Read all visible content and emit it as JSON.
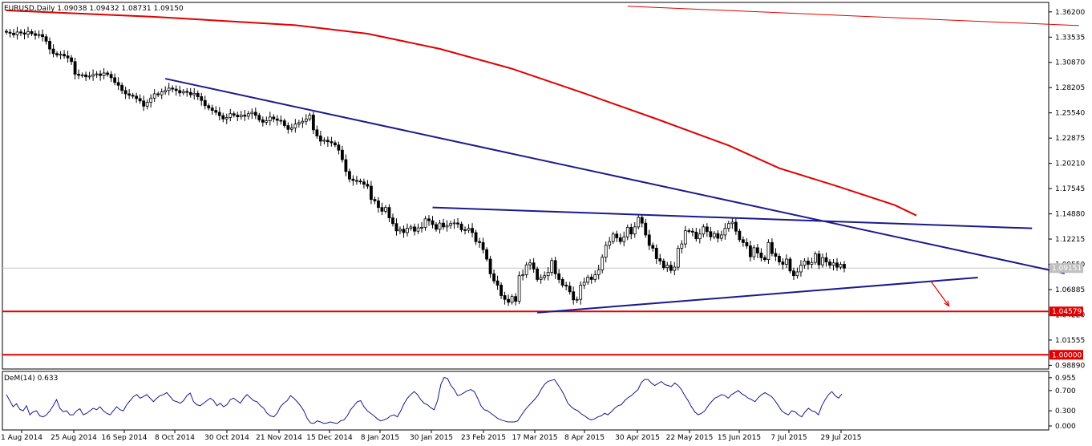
{
  "chart_data": [
    {
      "type": "candlestick",
      "title": "EURUSD,Daily  1.09038 1.09432 1.08731 1.09150",
      "ylim": [
        0.985,
        1.372
      ],
      "y_ticks": [
        "1.36200",
        "1.33535",
        "1.30870",
        "1.28205",
        "1.25540",
        "1.22875",
        "1.20210",
        "1.17545",
        "1.14880",
        "1.12215",
        "1.09550",
        "1.06885",
        "1.04220",
        "1.01555",
        "0.98890"
      ],
      "x_ticks": [
        "1 Aug 2014",
        "25 Aug 2014",
        "16 Sep 2014",
        "8 Oct 2014",
        "30 Oct 2014",
        "21 Nov 2014",
        "15 Dec 2014",
        "8 Jan 2015",
        "30 Jan 2015",
        "23 Feb 2015",
        "17 Mar 2015",
        "8 Apr 2015",
        "30 Apr 2015",
        "22 May 2015",
        "15 Jun 2015",
        "7 Jul 2015",
        "29 Jul 2015"
      ],
      "price_markers": [
        {
          "label": "1.09151",
          "value": 1.09151,
          "color": "#c0c0c0"
        },
        {
          "label": "1.04579",
          "value": 1.04579,
          "color": "#e00000"
        },
        {
          "label": "1.00000",
          "value": 1.0,
          "color": "#e00000"
        }
      ],
      "horizontal_lines": [
        {
          "value": 1.04579,
          "color": "#e00000"
        },
        {
          "value": 1.0,
          "color": "#e00000"
        }
      ],
      "close_series": [
        1.3405,
        1.3395,
        1.3378,
        1.3408,
        1.3398,
        1.3385,
        1.3412,
        1.339,
        1.3372,
        1.338,
        1.3358,
        1.331,
        1.3228,
        1.318,
        1.3165,
        1.3172,
        1.3155,
        1.3135,
        1.3095,
        1.2962,
        1.295,
        1.2955,
        1.2935,
        1.2942,
        1.2958,
        1.2965,
        1.2948,
        1.2975,
        1.296,
        1.2925,
        1.2875,
        1.2845,
        1.279,
        1.2755,
        1.274,
        1.273,
        1.2705,
        1.268,
        1.2625,
        1.2665,
        1.271,
        1.2755,
        1.2745,
        1.2775,
        1.279,
        1.2815,
        1.2805,
        1.279,
        1.2765,
        1.278,
        1.277,
        1.2745,
        1.276,
        1.2725,
        1.2685,
        1.263,
        1.2605,
        1.258,
        1.256,
        1.2525,
        1.249,
        1.2505,
        1.2545,
        1.253,
        1.2512,
        1.253,
        1.2518,
        1.2545,
        1.256,
        1.2528,
        1.248,
        1.2455,
        1.247,
        1.251,
        1.249,
        1.2475,
        1.247,
        1.242,
        1.238,
        1.2395,
        1.2435,
        1.245,
        1.2465,
        1.249,
        1.253,
        1.2375,
        1.231,
        1.2255,
        1.2265,
        1.225,
        1.2238,
        1.2215,
        1.216,
        1.206,
        1.1935,
        1.1855,
        1.184,
        1.1835,
        1.1825,
        1.18,
        1.178,
        1.164,
        1.1625,
        1.1555,
        1.1515,
        1.1555,
        1.1445,
        1.1385,
        1.1308,
        1.1325,
        1.129,
        1.1335,
        1.135,
        1.1305,
        1.134,
        1.1345,
        1.1435,
        1.1415,
        1.1375,
        1.1325,
        1.139,
        1.135,
        1.1365,
        1.1385,
        1.1392,
        1.138,
        1.132,
        1.1315,
        1.1335,
        1.129,
        1.1195,
        1.1185,
        1.111,
        1.101,
        1.0855,
        1.078,
        1.0735,
        1.0625,
        1.0585,
        1.0555,
        1.0615,
        1.0565,
        1.0835,
        1.0845,
        1.095,
        1.097,
        1.0905,
        1.0795,
        1.0815,
        1.0835,
        1.087,
        1.0995,
        1.0855,
        1.0795,
        1.0735,
        1.0725,
        1.0665,
        1.058,
        1.0585,
        1.0735,
        1.0765,
        1.082,
        1.0795,
        1.0845,
        1.0895,
        1.103,
        1.1155,
        1.1195,
        1.1275,
        1.1235,
        1.1195,
        1.1245,
        1.1345,
        1.1275,
        1.135,
        1.145,
        1.139,
        1.1265,
        1.1155,
        1.1125,
        1.1015,
        1.099,
        1.092,
        1.0945,
        1.089,
        1.0925,
        1.1125,
        1.117,
        1.131,
        1.1305,
        1.1295,
        1.1225,
        1.1275,
        1.135,
        1.13,
        1.1245,
        1.128,
        1.123,
        1.1265,
        1.1335,
        1.1385,
        1.14,
        1.1305,
        1.1215,
        1.1185,
        1.115,
        1.1035,
        1.113,
        1.1075,
        1.1025,
        1.1005,
        1.1185,
        1.107,
        1.104,
        1.098,
        1.0955,
        1.101,
        1.0885,
        1.0835,
        1.0875,
        1.0945,
        1.099,
        1.0955,
        1.0975,
        1.1065,
        1.095,
        1.1025,
        1.098,
        1.0945,
        1.097,
        1.0925,
        1.0955,
        1.0915
      ],
      "series": [
        {
          "name": "EURUSD",
          "type": "candle",
          "color": "#000000"
        },
        {
          "type": "line",
          "color": "#e00000",
          "points": [
            [
              0,
              1.3635
            ],
            [
              40,
              1.357
            ],
            [
              80,
              1.348
            ],
            [
              100,
              1.339
            ],
            [
              120,
              1.323
            ],
            [
              140,
              1.302
            ],
            [
              160,
              1.276
            ],
            [
              180,
              1.249
            ],
            [
              200,
              1.221
            ],
            [
              214,
              1.197
            ],
            [
              230,
              1.178
            ],
            [
              246,
              1.158
            ],
            [
              252,
              1.147
            ]
          ]
        },
        {
          "type": "line",
          "color": "#e00000",
          "points": [
            [
              172,
              1.368
            ],
            [
              297,
              1.3475
            ]
          ]
        }
      ],
      "trendlines": [
        {
          "color": "#1a1a8c",
          "from": [
            44,
            1.2915
          ],
          "to": [
            293,
            1.086
          ]
        },
        {
          "color": "#1a1a8c",
          "from": [
            118,
            1.1555
          ],
          "to": [
            284,
            1.1335
          ]
        },
        {
          "color": "#1a1a8c",
          "from": [
            147,
            1.0445
          ],
          "to": [
            269,
            1.0815
          ]
        }
      ],
      "arrow": {
        "color": "#e00000",
        "from": [
          256,
          1.0775
        ],
        "to": [
          261,
          1.0515
        ]
      }
    },
    {
      "type": "line",
      "title": "DeM(14) 0.633",
      "ylim": [
        0,
        1
      ],
      "y_ticks": [
        "0.955",
        "0.700",
        "0.300",
        "0.000"
      ],
      "x_ticks": [],
      "series": [
        {
          "name": "DeM(14)",
          "color": "#1a1a8c",
          "values": [
            0.62,
            0.5,
            0.38,
            0.44,
            0.33,
            0.3,
            0.4,
            0.22,
            0.28,
            0.3,
            0.2,
            0.18,
            0.22,
            0.3,
            0.4,
            0.52,
            0.35,
            0.28,
            0.3,
            0.22,
            0.22,
            0.3,
            0.34,
            0.22,
            0.25,
            0.3,
            0.35,
            0.32,
            0.38,
            0.3,
            0.25,
            0.22,
            0.3,
            0.38,
            0.32,
            0.3,
            0.42,
            0.5,
            0.58,
            0.62,
            0.55,
            0.58,
            0.62,
            0.55,
            0.48,
            0.55,
            0.6,
            0.62,
            0.66,
            0.58,
            0.5,
            0.48,
            0.45,
            0.5,
            0.6,
            0.65,
            0.48,
            0.42,
            0.4,
            0.45,
            0.5,
            0.55,
            0.5,
            0.4,
            0.45,
            0.38,
            0.42,
            0.52,
            0.55,
            0.5,
            0.45,
            0.55,
            0.62,
            0.56,
            0.5,
            0.48,
            0.4,
            0.35,
            0.25,
            0.2,
            0.18,
            0.25,
            0.38,
            0.45,
            0.5,
            0.6,
            0.55,
            0.48,
            0.4,
            0.3,
            0.15,
            0.06,
            0.05,
            0.1,
            0.08,
            0.05,
            0.06,
            0.08,
            0.06,
            0.05,
            0.1,
            0.12,
            0.2,
            0.32,
            0.4,
            0.48,
            0.5,
            0.38,
            0.3,
            0.25,
            0.2,
            0.14,
            0.1,
            0.12,
            0.15,
            0.2,
            0.22,
            0.18,
            0.3,
            0.44,
            0.55,
            0.62,
            0.68,
            0.62,
            0.52,
            0.45,
            0.42,
            0.36,
            0.32,
            0.5,
            0.82,
            0.96,
            0.94,
            0.8,
            0.72,
            0.6,
            0.62,
            0.66,
            0.7,
            0.72,
            0.68,
            0.55,
            0.4,
            0.32,
            0.3,
            0.25,
            0.2,
            0.15,
            0.12,
            0.1,
            0.08,
            0.08,
            0.08,
            0.1,
            0.2,
            0.3,
            0.38,
            0.45,
            0.52,
            0.6,
            0.72,
            0.82,
            0.88,
            0.9,
            0.92,
            0.82,
            0.72,
            0.6,
            0.45,
            0.38,
            0.33,
            0.3,
            0.24,
            0.2,
            0.15,
            0.12,
            0.14,
            0.18,
            0.2,
            0.25,
            0.22,
            0.28,
            0.35,
            0.4,
            0.42,
            0.5,
            0.56,
            0.6,
            0.66,
            0.72,
            0.86,
            0.92,
            0.92,
            0.85,
            0.8,
            0.84,
            0.88,
            0.82,
            0.8,
            0.78,
            0.85,
            0.8,
            0.72,
            0.6,
            0.5,
            0.38,
            0.28,
            0.22,
            0.25,
            0.3,
            0.4,
            0.48,
            0.55,
            0.58,
            0.62,
            0.6,
            0.55,
            0.62,
            0.66,
            0.7,
            0.64,
            0.6,
            0.55,
            0.52,
            0.48,
            0.56,
            0.62,
            0.66,
            0.62,
            0.58,
            0.5,
            0.4,
            0.3,
            0.25,
            0.22,
            0.3,
            0.28,
            0.22,
            0.18,
            0.28,
            0.35,
            0.3,
            0.28,
            0.22,
            0.4,
            0.52,
            0.62,
            0.68,
            0.6,
            0.55,
            0.63
          ]
        }
      ]
    }
  ]
}
